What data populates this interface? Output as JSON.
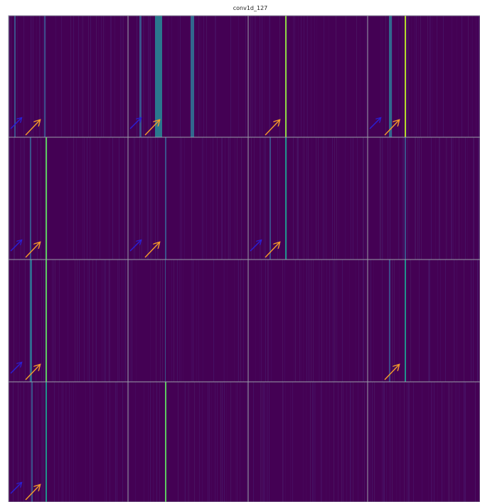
{
  "header": {
    "title": "conv1d_127"
  }
}
